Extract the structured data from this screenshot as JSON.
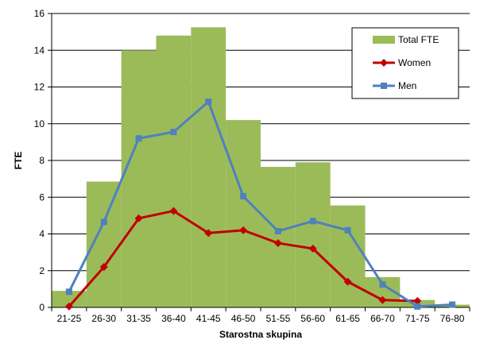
{
  "chart_data": {
    "type": "bar",
    "title": "",
    "xlabel": "Starostna skupina",
    "ylabel": "FTE",
    "ylim": [
      0,
      16
    ],
    "yticks": [
      0,
      2,
      4,
      6,
      8,
      10,
      12,
      14,
      16
    ],
    "grid": true,
    "legend_position": "top-right",
    "categories": [
      "21-25",
      "26-30",
      "31-35",
      "36-40",
      "41-45",
      "46-50",
      "51-55",
      "56-60",
      "61-65",
      "66-70",
      "71-75",
      "76-80"
    ],
    "series": [
      {
        "name": "Total FTE",
        "type": "bar",
        "color": "#9bbb59",
        "values": [
          0.9,
          6.85,
          14.0,
          14.8,
          15.25,
          10.2,
          7.65,
          7.9,
          5.55,
          1.65,
          0.4,
          0.15
        ]
      },
      {
        "name": "Women",
        "type": "line",
        "marker": "diamond",
        "color": "#c00000",
        "values": [
          0.05,
          2.2,
          4.85,
          5.25,
          4.05,
          4.2,
          3.5,
          3.2,
          1.4,
          0.4,
          0.35,
          null
        ]
      },
      {
        "name": "Men",
        "type": "line",
        "marker": "square",
        "color": "#4f81bd",
        "values": [
          0.85,
          4.65,
          9.2,
          9.55,
          11.2,
          6.05,
          4.15,
          4.7,
          4.2,
          1.25,
          0.05,
          0.15
        ]
      }
    ]
  }
}
